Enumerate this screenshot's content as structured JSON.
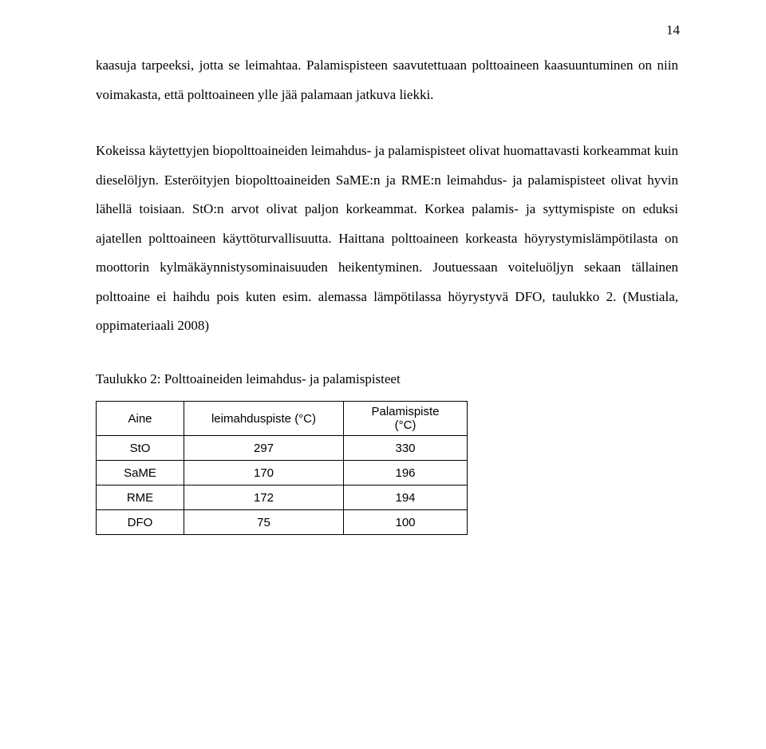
{
  "page_number": "14",
  "paragraphs": {
    "p1": "kaasuja tarpeeksi, jotta se leimahtaa. Palamispisteen saavutettuaan polttoaineen kaasuuntuminen on niin voimakasta, että polttoaineen ylle jää palamaan jatkuva liekki.",
    "p2": " Kokeissa käytettyjen biopolttoaineiden leimahdus- ja palamispisteet olivat huomattavasti korkeammat kuin dieselöljyn. Esteröityjen biopolttoaineiden SaME:n ja RME:n leimahdus- ja palamispisteet olivat hyvin lähellä toisiaan. StO:n arvot olivat paljon korkeammat. Korkea palamis- ja syttymispiste on eduksi ajatellen polttoaineen käyttöturvallisuutta. Haittana polttoaineen korkeasta höyrystymislämpötilasta on moottorin kylmäkäynnistysominaisuuden heikentyminen. Joutuessaan voiteluöljyn sekaan tällainen polttoaine ei haihdu pois kuten esim. alemassa lämpötilassa höyrystyvä DFO, taulukko 2. (Mustiala, oppimateriaali 2008)"
  },
  "table": {
    "caption": "Taulukko 2: Polttoaineiden leimahdus- ja palamispisteet",
    "headers": {
      "col1": "Aine",
      "col2": "leimahduspiste (°C)",
      "col3_line1": "Palamispiste",
      "col3_line2": "(°C)"
    },
    "rows": [
      {
        "aine": "StO",
        "leim": "297",
        "palam": "330"
      },
      {
        "aine": "SaME",
        "leim": "170",
        "palam": "196"
      },
      {
        "aine": "RME",
        "leim": "172",
        "palam": "194"
      },
      {
        "aine": "DFO",
        "leim": "75",
        "palam": "100"
      }
    ]
  }
}
